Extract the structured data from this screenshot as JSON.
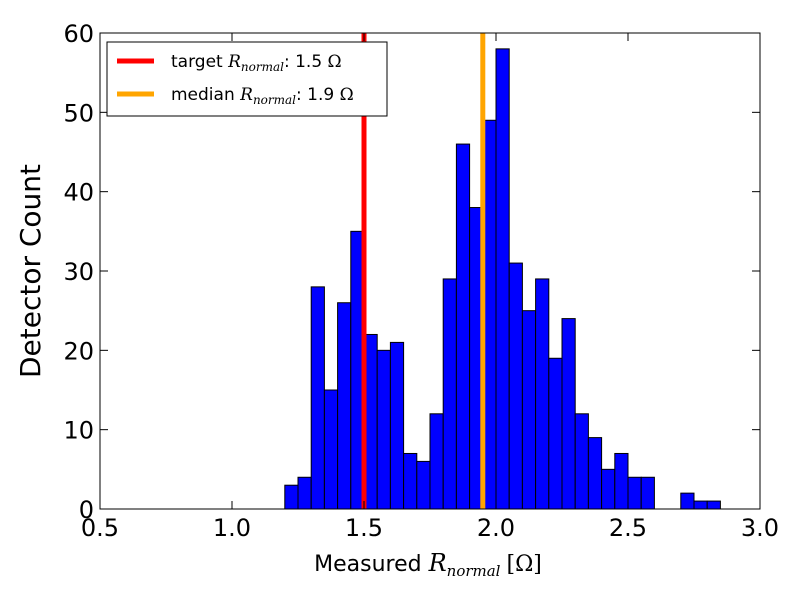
{
  "chart_data": {
    "type": "bar",
    "title": "",
    "xlabel": {
      "prefix": "Measured ",
      "symbol": "R",
      "subscript": "normal",
      "unit": "[Ω]"
    },
    "ylabel": "Detector Count",
    "xlim": [
      0.5,
      3.0
    ],
    "ylim": [
      0,
      60
    ],
    "xticks": [
      0.5,
      1.0,
      1.5,
      2.0,
      2.5,
      3.0
    ],
    "xtick_labels": [
      "0.5",
      "1.0",
      "1.5",
      "2.0",
      "2.5",
      "3.0"
    ],
    "yticks": [
      0,
      10,
      20,
      30,
      40,
      50,
      60
    ],
    "ytick_labels": [
      "0",
      "10",
      "20",
      "30",
      "40",
      "50",
      "60"
    ],
    "grid": false,
    "legend_position": "top-left",
    "bin_start": 1.2,
    "bin_width": 0.05,
    "values": [
      3,
      4,
      28,
      15,
      26,
      35,
      22,
      20,
      21,
      7,
      6,
      12,
      29,
      46,
      38,
      49,
      58,
      31,
      25,
      29,
      19,
      24,
      12,
      9,
      5,
      7,
      4,
      4,
      0,
      0,
      2,
      1,
      1
    ],
    "bar_color": "#0000ff",
    "vlines": [
      {
        "x": 1.5,
        "color": "#ff0000",
        "label_prefix": "target ",
        "label_symbol": "R",
        "label_subscript": "normal",
        "label_value": ": 1.5 ",
        "label_unit": "Ω"
      },
      {
        "x": 1.95,
        "color": "#ffa500",
        "label_prefix": "median ",
        "label_symbol": "R",
        "label_subscript": "normal",
        "label_value": ": 1.9 ",
        "label_unit": "Ω"
      }
    ]
  }
}
